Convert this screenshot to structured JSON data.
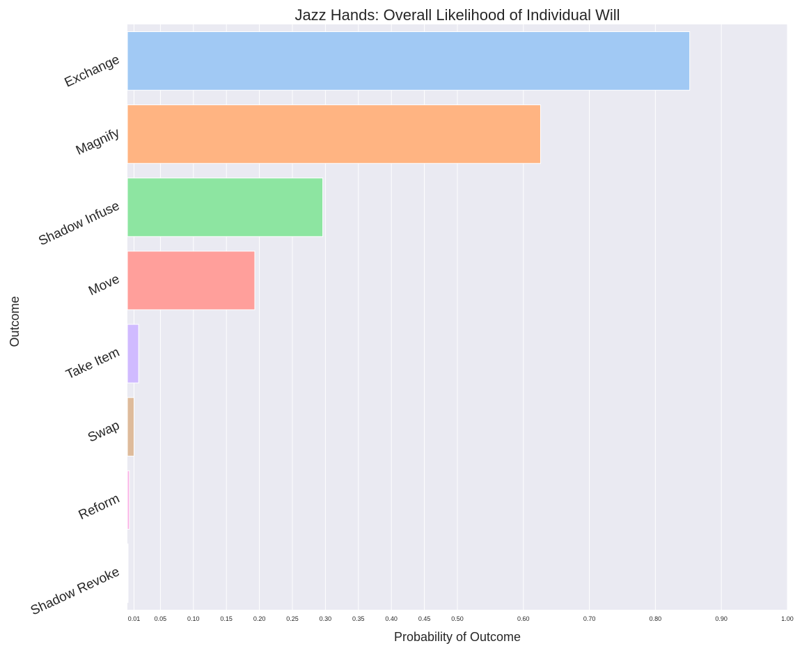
{
  "chart_data": {
    "type": "bar",
    "orientation": "horizontal",
    "title": "Jazz Hands: Overall Likelihood of Individual Will",
    "xlabel": "Probability of Outcome",
    "ylabel": "Outcome",
    "xlim": [
      0,
      1.0
    ],
    "xticks": [
      0.01,
      0.05,
      0.1,
      0.15,
      0.2,
      0.25,
      0.3,
      0.35,
      0.4,
      0.45,
      0.5,
      0.6,
      0.7,
      0.8,
      0.9,
      1.0
    ],
    "xtick_labels": [
      "0.01",
      "0.05",
      "0.10",
      "0.15",
      "0.20",
      "0.25",
      "0.30",
      "0.35",
      "0.40",
      "0.45",
      "0.50",
      "0.60",
      "0.70",
      "0.80",
      "0.90",
      "1.00"
    ],
    "grid": true,
    "categories": [
      "Exchange",
      "Magnify",
      "Shadow Infuse",
      "Move",
      "Take Item",
      "Swap",
      "Reform",
      "Shadow Revoke"
    ],
    "values": [
      0.852,
      0.626,
      0.296,
      0.193,
      0.017,
      0.01,
      0.003,
      0.001
    ],
    "colors": [
      "#a1c9f4",
      "#ffb482",
      "#8de5a1",
      "#ff9f9b",
      "#d0bbff",
      "#debb9b",
      "#fab0e4",
      "#cfcfcf"
    ],
    "plot_background": "#eaeaf2"
  }
}
